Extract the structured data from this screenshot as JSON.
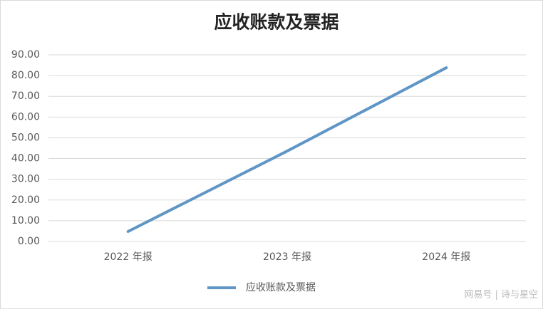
{
  "chart_data": {
    "type": "line",
    "title": "应收账款及票据",
    "categories": [
      "2022 年报",
      "2023 年报",
      "2024 年报"
    ],
    "series": [
      {
        "name": "应收账款及票据",
        "color": "#5f96c6",
        "values": [
          4.8,
          43.6,
          83.8
        ]
      }
    ],
    "ylim": [
      0,
      90
    ],
    "yticks": [
      {
        "value": 0,
        "label": "0.00"
      },
      {
        "value": 10,
        "label": "10.00"
      },
      {
        "value": 20,
        "label": "20.00"
      },
      {
        "value": 30,
        "label": "30.00"
      },
      {
        "value": 40,
        "label": "40.00"
      },
      {
        "value": 50,
        "label": "50.00"
      },
      {
        "value": 60,
        "label": "60.00"
      },
      {
        "value": 70,
        "label": "70.00"
      },
      {
        "value": 80,
        "label": "80.00"
      },
      {
        "value": 90,
        "label": "90.00"
      }
    ],
    "grid": true,
    "legend": "bottom"
  },
  "watermark": "网易号 | 诗与星空"
}
